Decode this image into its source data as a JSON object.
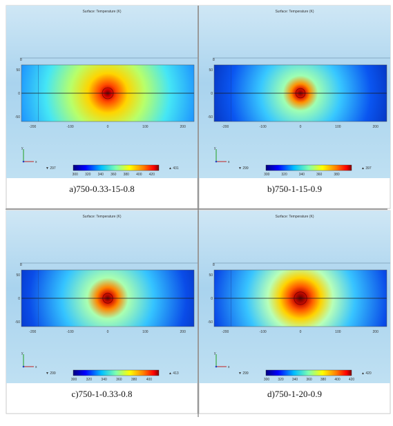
{
  "figure": {
    "panels": [
      {
        "title": "Surface: Temperature (K)",
        "caption": "a)750-0.33-15-0.8",
        "xticks": [
          "-200",
          "-100",
          "0",
          "100",
          "200"
        ],
        "yticks": [
          "50",
          "0",
          "-50"
        ],
        "ytop": "8",
        "min_label": "▼ 297",
        "max_label": "▲ 431",
        "colorbar_ticks": [
          "300",
          "320",
          "340",
          "360",
          "380",
          "400",
          "420"
        ],
        "axis_labels": [
          "y",
          "x"
        ]
      },
      {
        "title": "Surface: Temperature (K)",
        "caption": "b)750-1-15-0.9",
        "xticks": [
          "-200",
          "-100",
          "0",
          "100",
          "200"
        ],
        "yticks": [
          "50",
          "0",
          "-50"
        ],
        "ytop": "8",
        "min_label": "▼ 299",
        "max_label": "▲ 397",
        "colorbar_ticks": [
          "300",
          "320",
          "340",
          "360",
          "380"
        ],
        "axis_labels": [
          "y",
          "x"
        ]
      },
      {
        "title": "Surface: Temperature (K)",
        "caption": "c)750-1-0.33-0.8",
        "xticks": [
          "-200",
          "-100",
          "0",
          "100",
          "200"
        ],
        "yticks": [
          "50",
          "0",
          "-50"
        ],
        "ytop": "8",
        "min_label": "▼ 299",
        "max_label": "▲ 413",
        "colorbar_ticks": [
          "300",
          "320",
          "340",
          "360",
          "380",
          "400"
        ],
        "axis_labels": [
          "y",
          "x"
        ]
      },
      {
        "title": "Surface: Temperature (K)",
        "caption": "d)750-1-20-0.9",
        "xticks": [
          "-200",
          "-100",
          "0",
          "100",
          "200"
        ],
        "yticks": [
          "50",
          "0",
          "-50"
        ],
        "ytop": "8",
        "min_label": "▼ 299",
        "max_label": "▲ 420",
        "colorbar_ticks": [
          "300",
          "320",
          "340",
          "360",
          "380",
          "400",
          "420"
        ],
        "axis_labels": [
          "y",
          "x"
        ]
      }
    ]
  },
  "chart_data": [
    {
      "type": "heatmap",
      "title": "Surface: Temperature (K)",
      "xlim": [
        -230,
        230
      ],
      "ylim": [
        -60,
        60
      ],
      "colorbar": {
        "min": 297,
        "max": 431,
        "ticks": [
          300,
          320,
          340,
          360,
          380,
          400,
          420
        ]
      },
      "hotspot": {
        "x": 0,
        "y": 0,
        "max": 431
      },
      "caption": "a)750-0.33-15-0.8"
    },
    {
      "type": "heatmap",
      "title": "Surface: Temperature (K)",
      "xlim": [
        -230,
        230
      ],
      "ylim": [
        -60,
        60
      ],
      "colorbar": {
        "min": 299,
        "max": 397,
        "ticks": [
          300,
          320,
          340,
          360,
          380
        ]
      },
      "hotspot": {
        "x": 0,
        "y": 0,
        "max": 397
      },
      "caption": "b)750-1-15-0.9"
    },
    {
      "type": "heatmap",
      "title": "Surface: Temperature (K)",
      "xlim": [
        -230,
        230
      ],
      "ylim": [
        -60,
        60
      ],
      "colorbar": {
        "min": 299,
        "max": 413,
        "ticks": [
          300,
          320,
          340,
          360,
          380,
          400
        ]
      },
      "hotspot": {
        "x": 0,
        "y": 0,
        "max": 413
      },
      "caption": "c)750-1-0.33-0.8"
    },
    {
      "type": "heatmap",
      "title": "Surface: Temperature (K)",
      "xlim": [
        -230,
        230
      ],
      "ylim": [
        -60,
        60
      ],
      "colorbar": {
        "min": 299,
        "max": 420,
        "ticks": [
          300,
          320,
          340,
          360,
          380,
          400,
          420
        ]
      },
      "hotspot": {
        "x": 0,
        "y": 0,
        "max": 420
      },
      "caption": "d)750-1-20-0.9"
    }
  ]
}
